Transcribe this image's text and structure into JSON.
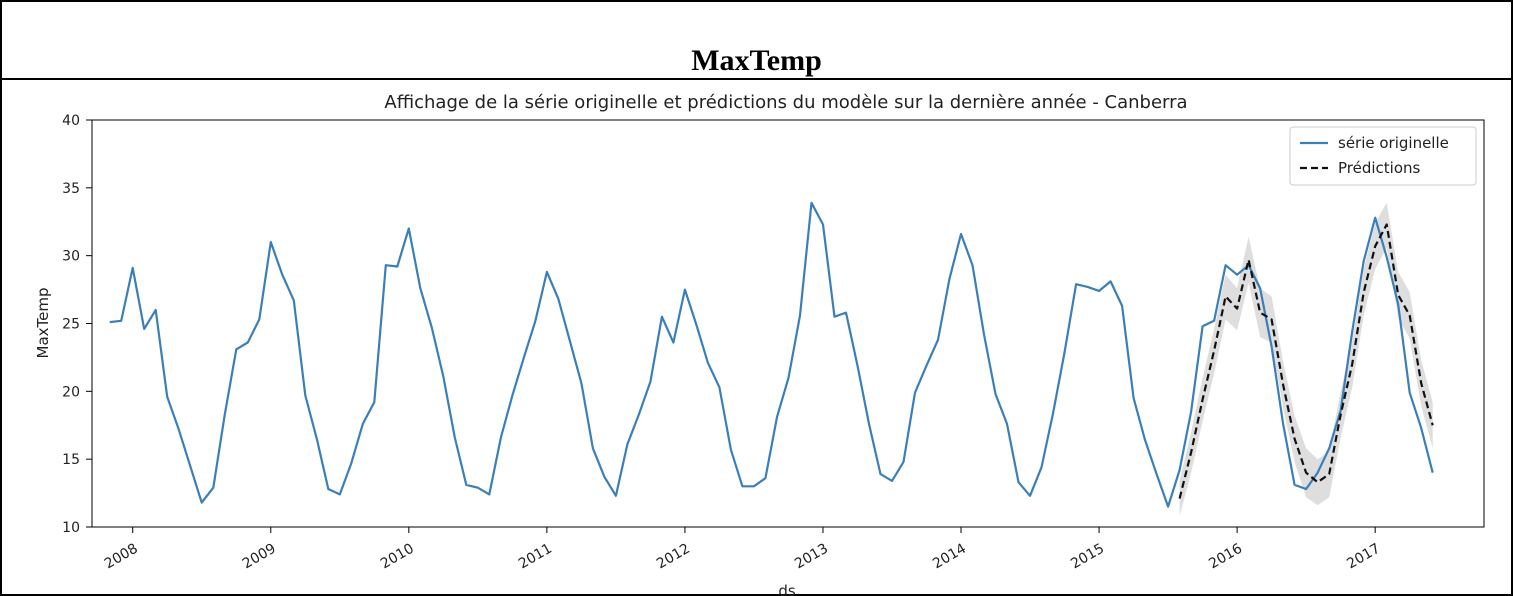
{
  "section_title": "MaxTemp",
  "chart_data": {
    "type": "line",
    "title": "Affichage de la série originelle et prédictions du modèle sur la dernière année - Canberra",
    "xlabel": "ds",
    "ylabel": "MaxTemp",
    "ylim": [
      10,
      40
    ],
    "xlim": [
      "2007-09-15",
      "2017-10-15"
    ],
    "yticks": [
      10,
      15,
      20,
      25,
      30,
      35,
      40
    ],
    "xticks": [
      "2008",
      "2009",
      "2010",
      "2011",
      "2012",
      "2013",
      "2014",
      "2015",
      "2016",
      "2017"
    ],
    "grid": false,
    "legend_position": "top-right",
    "series": [
      {
        "name": "série originelle",
        "color": "#3a7fb8",
        "style": "solid",
        "x": [
          "2007-11",
          "2007-12",
          "2008-01",
          "2008-02",
          "2008-03",
          "2008-04",
          "2008-05",
          "2008-06",
          "2008-07",
          "2008-08",
          "2008-09",
          "2008-10",
          "2008-11",
          "2008-12",
          "2009-01",
          "2009-02",
          "2009-03",
          "2009-04",
          "2009-05",
          "2009-06",
          "2009-07",
          "2009-08",
          "2009-09",
          "2009-10",
          "2009-11",
          "2009-12",
          "2010-01",
          "2010-02",
          "2010-03",
          "2010-04",
          "2010-05",
          "2010-06",
          "2010-07",
          "2010-08",
          "2010-09",
          "2010-10",
          "2010-11",
          "2010-12",
          "2011-01",
          "2011-02",
          "2011-03",
          "2011-04",
          "2011-05",
          "2011-06",
          "2011-07",
          "2011-08",
          "2011-09",
          "2011-10",
          "2011-11",
          "2011-12",
          "2012-01",
          "2012-02",
          "2012-03",
          "2012-04",
          "2012-05",
          "2012-06",
          "2012-07",
          "2012-08",
          "2012-09",
          "2012-10",
          "2012-11",
          "2012-12",
          "2013-01",
          "2013-02",
          "2013-03",
          "2013-04",
          "2013-05",
          "2013-06",
          "2013-07",
          "2013-08",
          "2013-09",
          "2013-10",
          "2013-11",
          "2013-12",
          "2014-01",
          "2014-02",
          "2014-03",
          "2014-04",
          "2014-05",
          "2014-06",
          "2014-07",
          "2014-08",
          "2014-09",
          "2014-10",
          "2014-11",
          "2014-12",
          "2015-01",
          "2015-02",
          "2015-03",
          "2015-04",
          "2015-05",
          "2015-06",
          "2015-07",
          "2015-08",
          "2015-09",
          "2015-10",
          "2015-11",
          "2015-12",
          "2016-01",
          "2016-02",
          "2016-03",
          "2016-04",
          "2016-05",
          "2016-06",
          "2016-07",
          "2016-08",
          "2016-09",
          "2016-10",
          "2016-11",
          "2016-12",
          "2017-01",
          "2017-02",
          "2017-03",
          "2017-04",
          "2017-05",
          "2017-06"
        ],
        "y": [
          25.1,
          25.2,
          29.1,
          24.6,
          26.0,
          19.6,
          17.2,
          14.5,
          11.8,
          12.9,
          18.3,
          23.1,
          23.6,
          25.3,
          31.0,
          28.6,
          26.7,
          19.7,
          16.5,
          12.8,
          12.4,
          14.7,
          17.6,
          19.2,
          29.3,
          29.2,
          32.0,
          27.6,
          24.7,
          21.1,
          16.6,
          13.1,
          12.9,
          12.4,
          16.6,
          19.7,
          22.5,
          25.2,
          28.8,
          26.8,
          23.7,
          20.6,
          15.8,
          13.7,
          12.3,
          16.1,
          18.3,
          20.7,
          25.5,
          23.6,
          27.5,
          24.9,
          22.1,
          20.3,
          15.7,
          13.0,
          13.0,
          13.6,
          18.1,
          21.0,
          25.6,
          33.9,
          32.3,
          25.5,
          25.8,
          21.9,
          17.6,
          13.9,
          13.4,
          14.8,
          19.9,
          21.9,
          23.8,
          28.3,
          31.6,
          29.3,
          24.2,
          19.8,
          17.6,
          13.3,
          12.3,
          14.4,
          18.4,
          22.9,
          27.9,
          27.7,
          27.4,
          28.1,
          26.3,
          19.5,
          16.4,
          13.9,
          11.5,
          14.2,
          18.5,
          24.8,
          25.2,
          29.3,
          28.6,
          29.3,
          27.6,
          23.3,
          17.6,
          13.1,
          12.8,
          14.0,
          15.8,
          18.6,
          24.4,
          29.6,
          32.8,
          29.9,
          26.4,
          19.9,
          17.3,
          14.0
        ]
      },
      {
        "name": "Prédictions",
        "color": "#111111",
        "style": "dashed",
        "x": [
          "2015-08",
          "2015-09",
          "2015-10",
          "2015-11",
          "2015-12",
          "2016-01",
          "2016-02",
          "2016-03",
          "2016-04",
          "2016-05",
          "2016-06",
          "2016-07",
          "2016-08",
          "2016-09",
          "2016-10",
          "2016-11",
          "2016-12",
          "2017-01",
          "2017-02",
          "2017-03",
          "2017-04",
          "2017-05",
          "2017-06"
        ],
        "y": [
          12.1,
          15.5,
          19.4,
          23.0,
          27.0,
          26.1,
          29.7,
          25.8,
          25.3,
          20.5,
          16.5,
          14.0,
          13.3,
          13.9,
          18.3,
          22.0,
          27.3,
          30.7,
          32.3,
          27.1,
          25.6,
          20.6,
          17.5
        ],
        "lower": [
          10.8,
          14.0,
          17.8,
          21.3,
          25.3,
          24.5,
          28.0,
          24.0,
          23.6,
          18.8,
          14.8,
          12.2,
          11.6,
          12.2,
          16.6,
          20.3,
          25.6,
          29.0,
          30.6,
          25.4,
          23.9,
          18.9,
          15.8
        ],
        "upper": [
          13.4,
          17.0,
          21.0,
          24.6,
          28.6,
          27.6,
          31.4,
          27.6,
          27.0,
          22.2,
          18.2,
          15.8,
          15.0,
          15.6,
          20.0,
          23.7,
          29.0,
          32.4,
          33.9,
          28.8,
          27.3,
          22.3,
          19.2
        ]
      }
    ]
  }
}
